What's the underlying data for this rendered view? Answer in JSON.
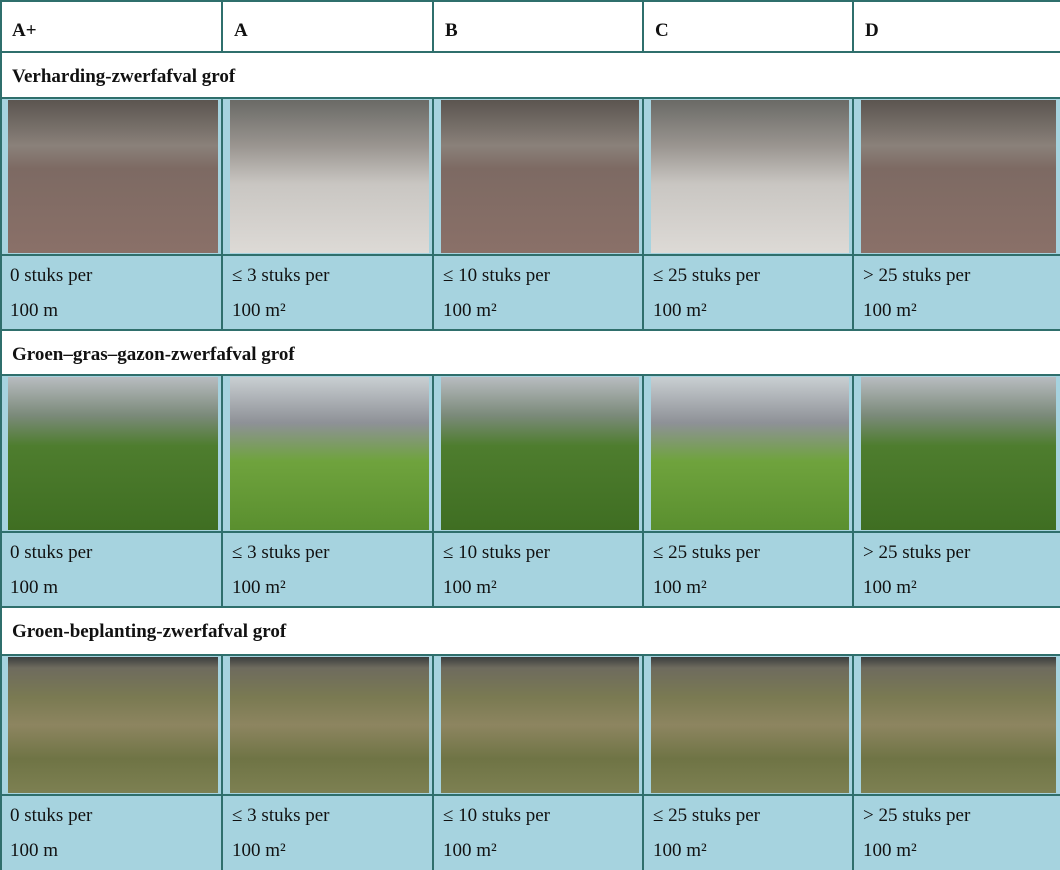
{
  "header": {
    "columns": [
      "A+",
      "A",
      "B",
      "C",
      "D"
    ]
  },
  "sections": [
    {
      "title": "Verharding-zwerfafval grof",
      "captions": [
        [
          "0 stuks per",
          "100 m"
        ],
        [
          "≤ 3 stuks per",
          "100 m²"
        ],
        [
          "≤ 10 stuks per",
          "100 m²"
        ],
        [
          "≤ 25 stuks per",
          "100 m²"
        ],
        [
          "> 25 stuks per",
          "100 m²"
        ]
      ]
    },
    {
      "title": "Groen–gras–gazon-zwerfafval grof",
      "captions": [
        [
          "0 stuks per",
          "100 m"
        ],
        [
          "≤ 3 stuks per",
          "100 m²"
        ],
        [
          "≤ 10 stuks per",
          "100 m²"
        ],
        [
          "≤ 25 stuks per",
          "100 m²"
        ],
        [
          "> 25 stuks per",
          "100 m²"
        ]
      ]
    },
    {
      "title": "Groen-beplanting-zwerfafval grof",
      "captions": [
        [
          "0 stuks per",
          "100 m"
        ],
        [
          "≤ 3 stuks per",
          "100 m²"
        ],
        [
          "≤ 10 stuks per",
          "100 m²"
        ],
        [
          "≤ 25 stuks per",
          "100 m²"
        ],
        [
          "> 25 stuks per",
          "100 m²"
        ]
      ]
    }
  ]
}
